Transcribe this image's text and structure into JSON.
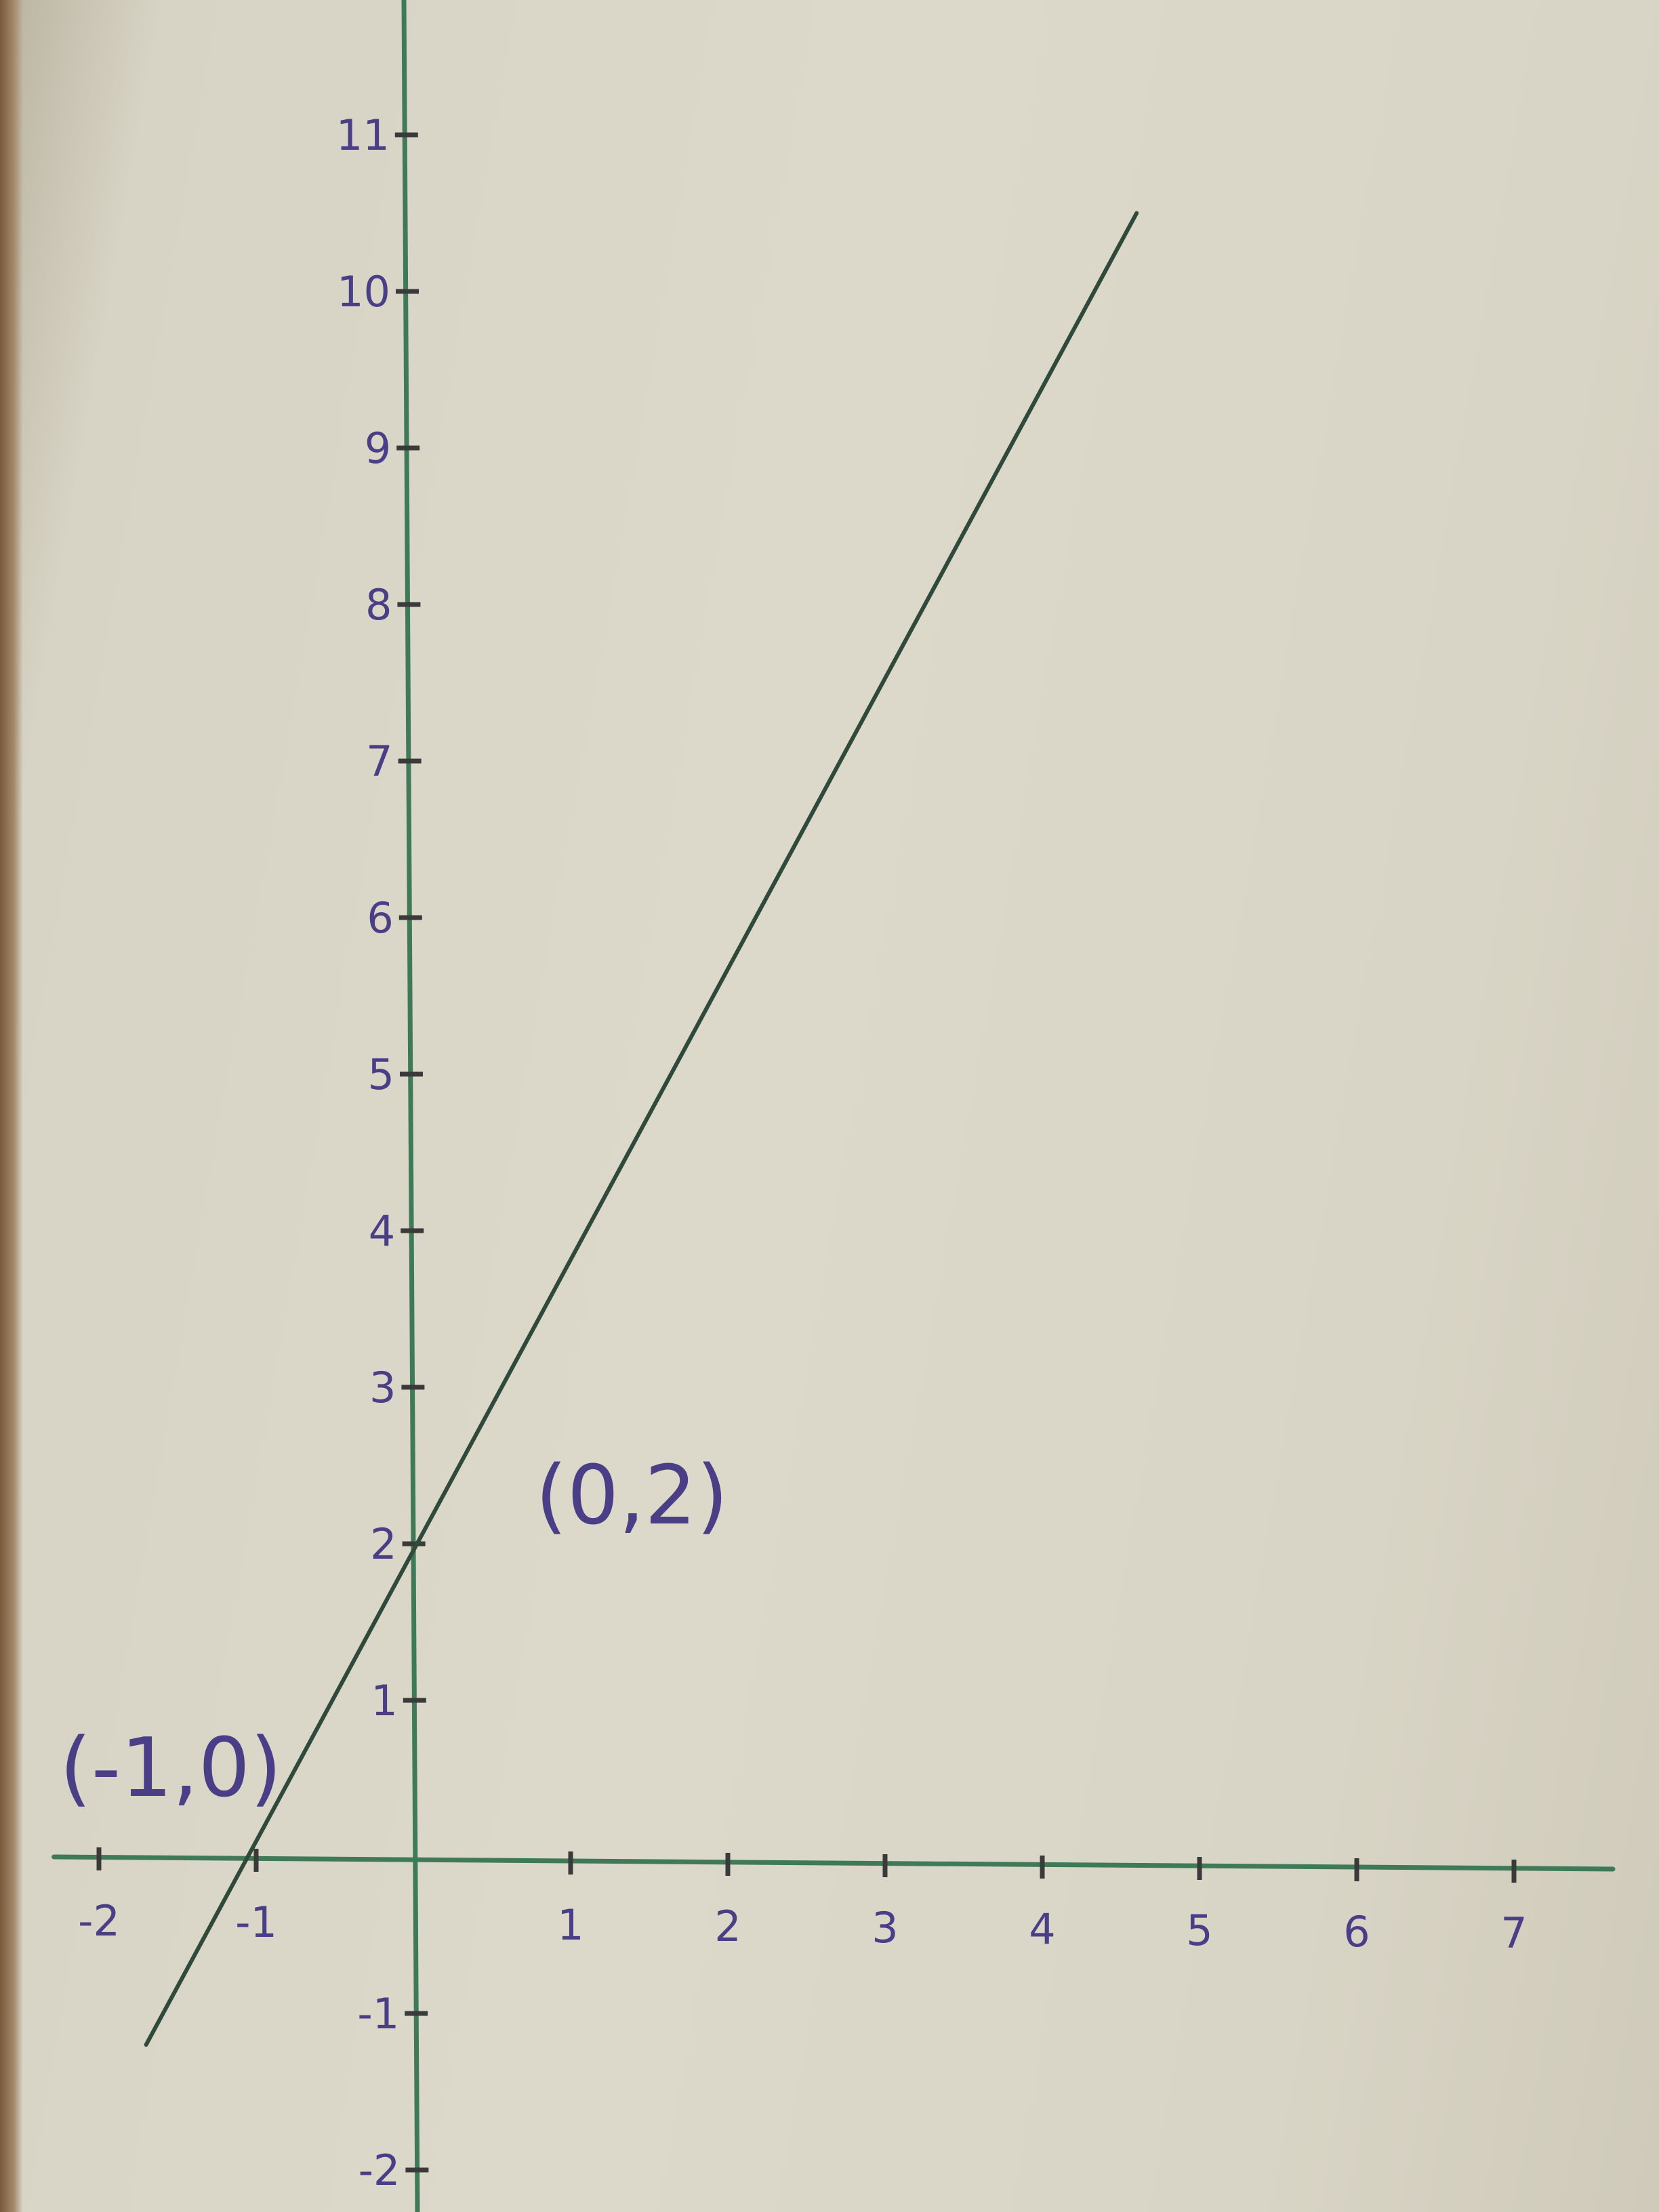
{
  "chart_data": {
    "type": "line",
    "title": "",
    "xlabel": "",
    "ylabel": "",
    "xlim": [
      -2.2,
      7.5
    ],
    "ylim": [
      -2,
      12
    ],
    "x_ticks": [
      -2,
      -1,
      1,
      2,
      3,
      4,
      5,
      6,
      7
    ],
    "y_ticks": [
      -2,
      -1,
      1,
      2,
      3,
      4,
      5,
      6,
      7,
      8,
      9,
      10,
      11
    ],
    "series": [
      {
        "x": [
          -1.7,
          4.6
        ],
        "y": [
          -1.2,
          10.5
        ]
      }
    ],
    "annotations": [
      {
        "text": "(0,2)",
        "x": 0,
        "y": 2
      },
      {
        "text": "(-1,0)",
        "x": -1,
        "y": 0
      }
    ],
    "grid": false,
    "colors": {
      "axis": "#3f7a58",
      "line": "#2f4a3a",
      "ink": "#4a3f86"
    }
  }
}
